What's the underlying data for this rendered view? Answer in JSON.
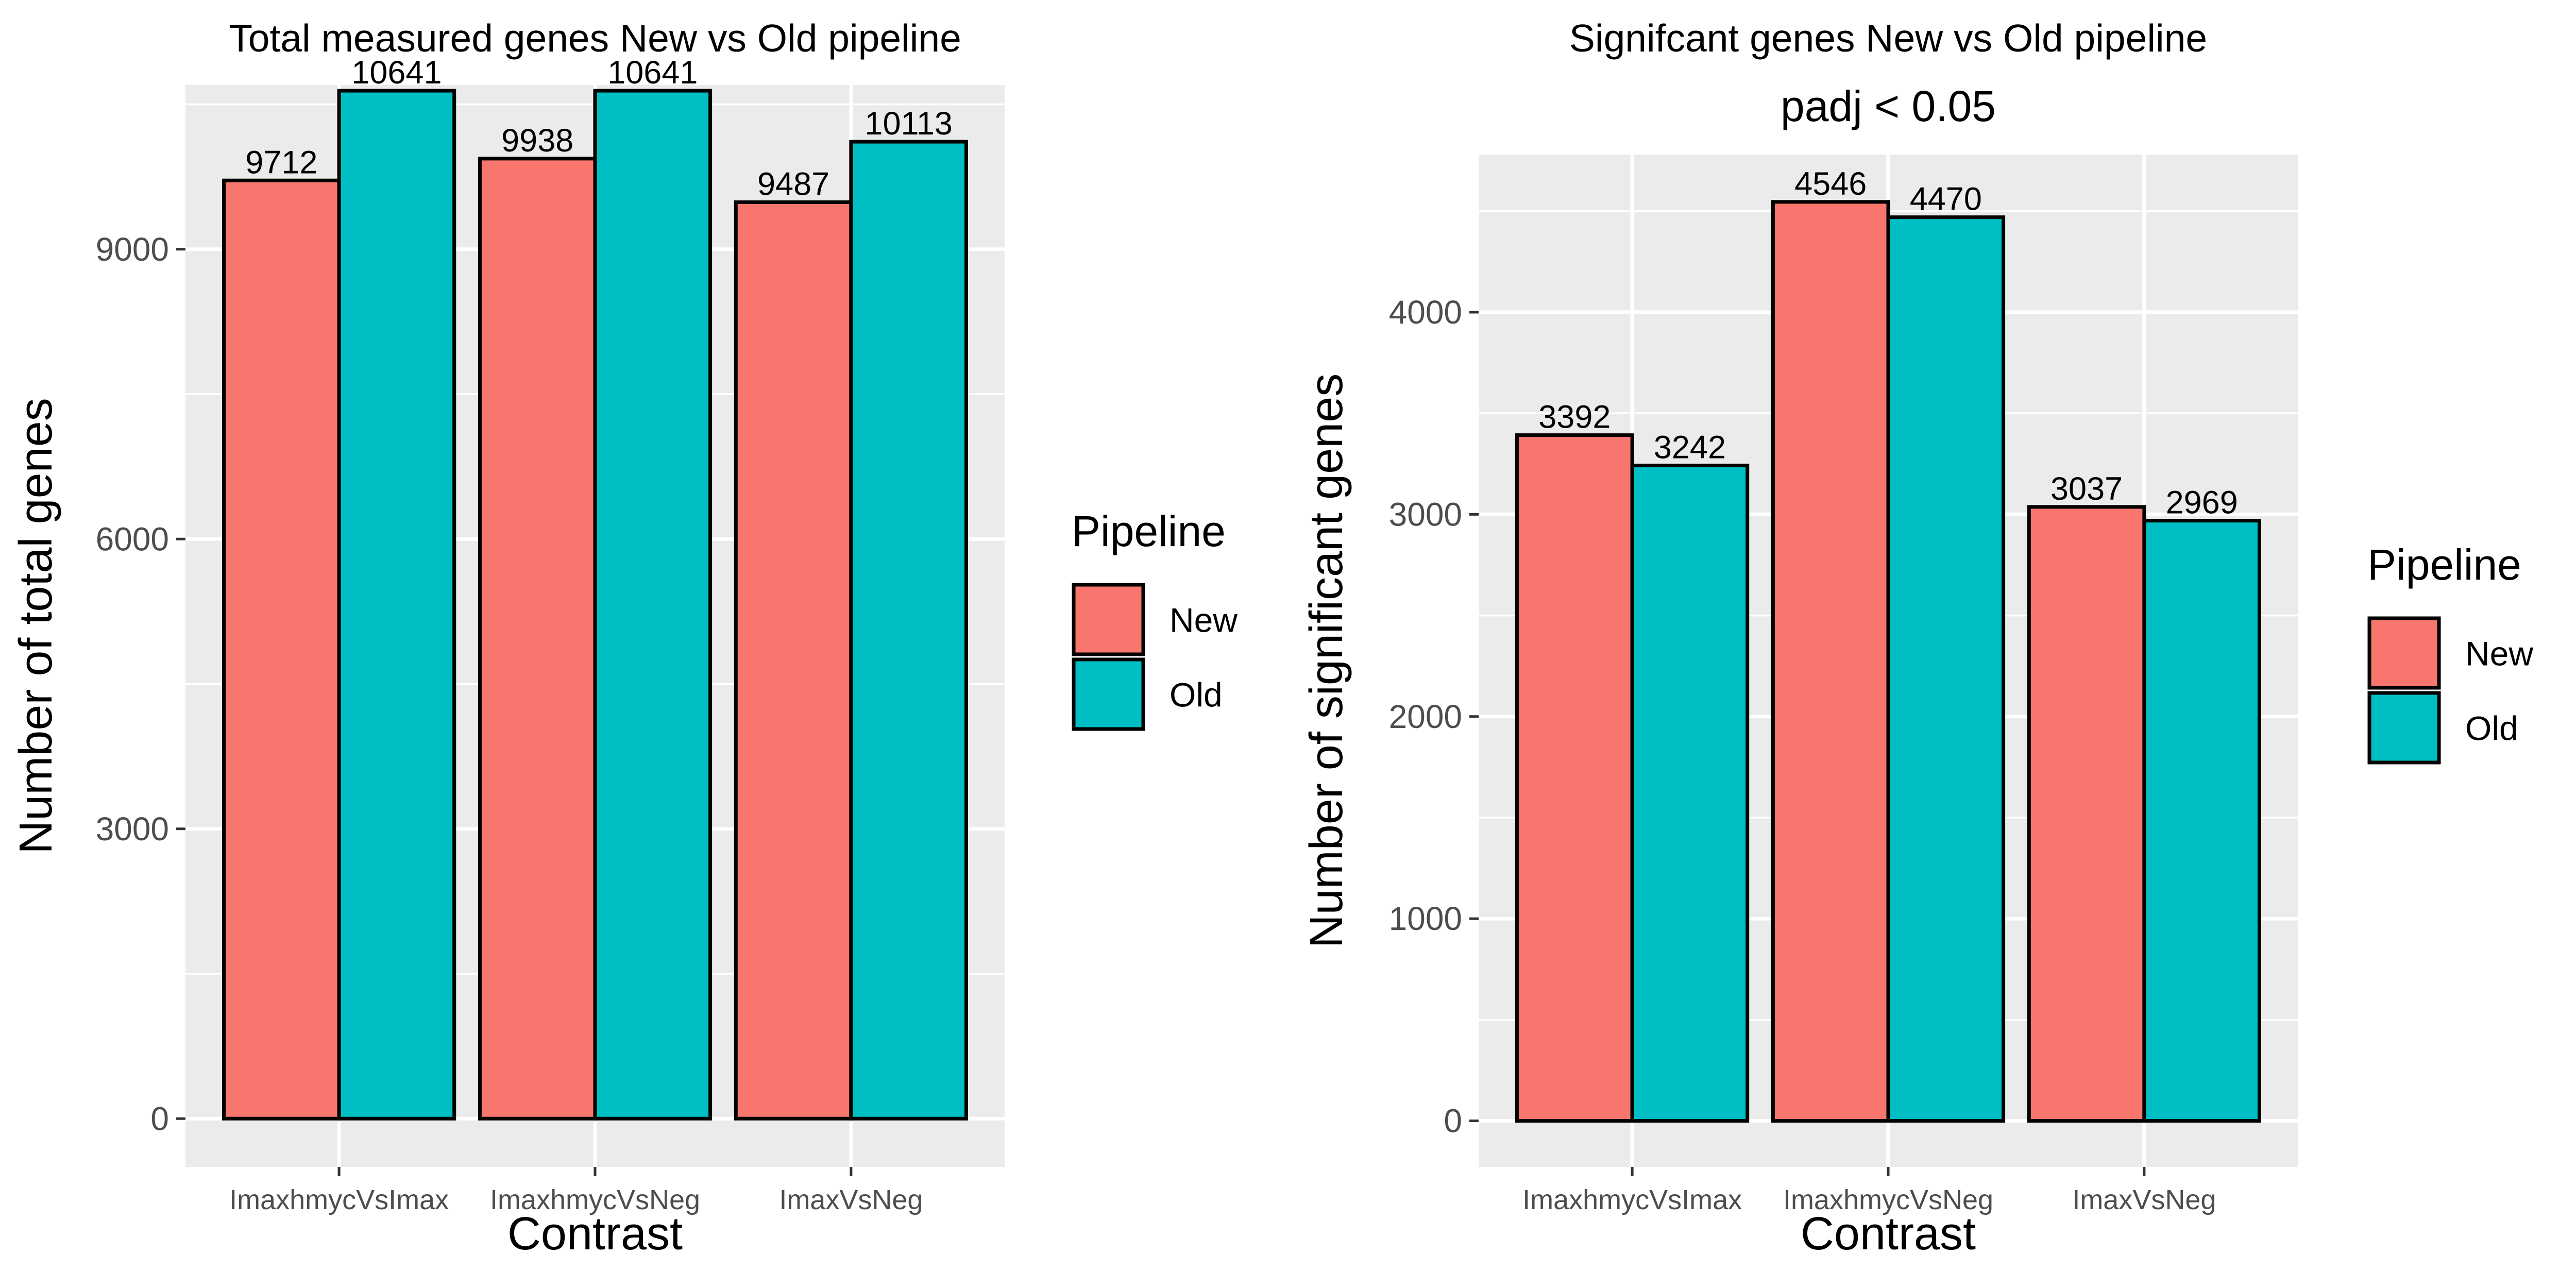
{
  "colors": {
    "New": "#f8766d",
    "Old": "#00bfc4"
  },
  "chart_data": [
    {
      "type": "bar",
      "title": "Total measured genes New vs Old pipeline",
      "subtitle": "",
      "xlabel": "Contrast",
      "ylabel": "Number of total genes",
      "categories": [
        "ImaxhmycVsImax",
        "ImaxhmycVsNeg",
        "ImaxVsNeg"
      ],
      "series": [
        {
          "name": "New",
          "values": [
            9712,
            9938,
            9487
          ]
        },
        {
          "name": "Old",
          "values": [
            10641,
            10641,
            10113
          ]
        }
      ],
      "yticks": [
        0,
        3000,
        6000,
        9000
      ],
      "ylim": [
        -500,
        10700
      ],
      "grid": true,
      "legend": {
        "title": "Pipeline",
        "position": "right"
      }
    },
    {
      "type": "bar",
      "title": "Signifcant genes New vs Old pipeline",
      "subtitle": "padj < 0.05",
      "xlabel": "Contrast",
      "ylabel": "Number of significant genes",
      "categories": [
        "ImaxhmycVsImax",
        "ImaxhmycVsNeg",
        "ImaxVsNeg"
      ],
      "series": [
        {
          "name": "New",
          "values": [
            3392,
            4546,
            3037
          ]
        },
        {
          "name": "Old",
          "values": [
            3242,
            4470,
            2969
          ]
        }
      ],
      "yticks": [
        0,
        1000,
        2000,
        3000,
        4000
      ],
      "ylim": [
        -228,
        4780
      ],
      "grid": true,
      "legend": {
        "title": "Pipeline",
        "position": "right"
      }
    }
  ]
}
